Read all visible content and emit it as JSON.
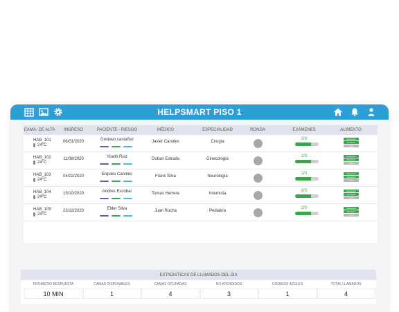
{
  "header": {
    "title": "HELPSMART PISO 1",
    "left_icons": [
      "calendar-grid-icon",
      "image-icon",
      "gear-icon"
    ],
    "right_icons": [
      "home-icon",
      "bell-icon",
      "user-icon"
    ],
    "color": "#2e9fd6"
  },
  "table": {
    "columns": [
      "CAMA- DE ALTA",
      "INGRESO",
      "PACIENTE - RIESGO",
      "MÉDICO",
      "ESPECIALIDAD",
      "RONDA",
      "EXÁMENES",
      "ALIMENTO"
    ],
    "rows": [
      {
        "hab": "HAB_101",
        "temp": "24°C",
        "ingreso": "06/01/2020",
        "paciente": "Gustavo castañez",
        "medico": "Javier Canoles",
        "especialidad": "Cirugía",
        "examenes": "2/3",
        "exam_progress": 0.67
      },
      {
        "hab": "HAB_102",
        "temp": "24°C",
        "ingreso": "11/08/2020",
        "paciente": "Yiseth Ruiz",
        "medico": "Duban Estrada",
        "especialidad": "Ginecología",
        "examenes": "2/3",
        "exam_progress": 0.67
      },
      {
        "hab": "HAB_103",
        "temp": "24°C",
        "ingreso": "04/02/2020",
        "paciente": "Erquies Canoles",
        "medico": "Frank Silva",
        "especialidad": "Neurología",
        "examenes": "2/3",
        "exam_progress": 0.67
      },
      {
        "hab": "HAB_104",
        "temp": "24°C",
        "ingreso": "15/10/2020",
        "paciente": "Andres Escobar",
        "medico": "Tomas Herrera",
        "especialidad": "Internista",
        "examenes": "2/3",
        "exam_progress": 0.67
      },
      {
        "hab": "HAB_105",
        "temp": "24°C",
        "ingreso": "23/12/2020",
        "paciente": "Elder Silva",
        "medico": "Juan Rocha",
        "especialidad": "Pediatría",
        "examenes": "2/3",
        "exam_progress": 0.67
      }
    ],
    "meal_tags": [
      {
        "label": "Desayuno",
        "color": "#3aa54a"
      },
      {
        "label": "Almuerzo",
        "color": "#3aa54a"
      },
      {
        "label": "Cena",
        "color": "#b5b5b5"
      }
    ],
    "risk_colors": [
      "#6a5aa8",
      "#3aa54a",
      "#49b7de"
    ],
    "ronda_color": "#a8a8a8",
    "exam_color": "#3aa54a"
  },
  "stats": {
    "title": "ESTADISTICAS DE LLAMADOS DEL DIA",
    "items": [
      {
        "label": "PROMEDIO RESPUESTA",
        "value": "10 MIN"
      },
      {
        "label": "CAMAS DISPONIBLES",
        "value": "1"
      },
      {
        "label": "CAMAS OCUPADAS",
        "value": "4"
      },
      {
        "label": "NO ATENDIDOS",
        "value": "3"
      },
      {
        "label": "CODIGOS AZULES",
        "value": "1"
      },
      {
        "label": "TOTAL LLAMADOS",
        "value": "4"
      }
    ]
  }
}
